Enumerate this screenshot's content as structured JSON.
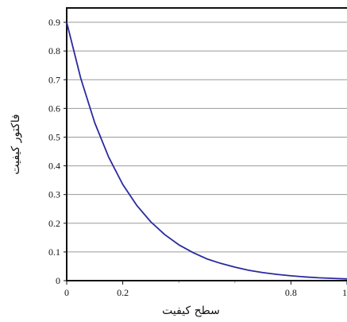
{
  "chart_data": {
    "type": "line",
    "xlabel": "سطح کیفیت",
    "ylabel": "فاکتور کیفیت",
    "xlim": [
      0,
      1
    ],
    "ylim": [
      0,
      0.95
    ],
    "x_ticks": [
      {
        "value": 0,
        "label": "0"
      },
      {
        "value": 0.2,
        "label": "0.2"
      },
      {
        "value": 0.8,
        "label": "0.8"
      },
      {
        "value": 1.0,
        "label": "1"
      }
    ],
    "x_minor_ticks": [
      0.4,
      0.6
    ],
    "y_ticks": [
      {
        "value": 0,
        "label": "0"
      },
      {
        "value": 0.1,
        "label": "0.1"
      },
      {
        "value": 0.2,
        "label": "0.2"
      },
      {
        "value": 0.3,
        "label": "0.3"
      },
      {
        "value": 0.4,
        "label": "0.4"
      },
      {
        "value": 0.5,
        "label": "0.5"
      },
      {
        "value": 0.6,
        "label": "0.6"
      },
      {
        "value": 0.7,
        "label": "0.7"
      },
      {
        "value": 0.8,
        "label": "0.8"
      },
      {
        "value": 0.9,
        "label": "0.9"
      }
    ],
    "grid": "horizontal",
    "series": [
      {
        "color": "#2a2aa0",
        "x": [
          0,
          0.05,
          0.1,
          0.15,
          0.2,
          0.25,
          0.3,
          0.35,
          0.4,
          0.45,
          0.5,
          0.55,
          0.6,
          0.65,
          0.7,
          0.75,
          0.8,
          0.85,
          0.9,
          0.95,
          1.0
        ],
        "y": [
          0.9,
          0.705,
          0.55,
          0.43,
          0.335,
          0.262,
          0.205,
          0.16,
          0.125,
          0.098,
          0.076,
          0.06,
          0.047,
          0.036,
          0.028,
          0.022,
          0.017,
          0.013,
          0.01,
          0.008,
          0.006
        ]
      }
    ]
  }
}
